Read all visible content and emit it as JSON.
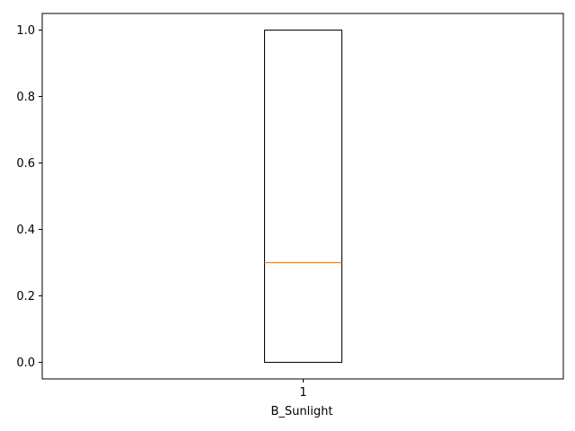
{
  "chart_data": {
    "type": "box",
    "xlabel": "B_Sunlight",
    "ylabel": "",
    "title": "",
    "ylim": [
      -0.05,
      1.05
    ],
    "yticks": [
      0.0,
      0.2,
      0.4,
      0.6,
      0.8,
      1.0
    ],
    "ytick_labels": [
      "0.0",
      "0.2",
      "0.4",
      "0.6",
      "0.8",
      "1.0"
    ],
    "categories": [
      "1"
    ],
    "boxes": [
      {
        "position": "1",
        "whisker_low": 0.0,
        "q1": 0.0,
        "median": 0.3,
        "q3": 1.0,
        "whisker_high": 1.0
      }
    ],
    "grid": false,
    "colors": {
      "box": "#000000",
      "median": "#ff7f0e",
      "axes": "#000000"
    }
  }
}
